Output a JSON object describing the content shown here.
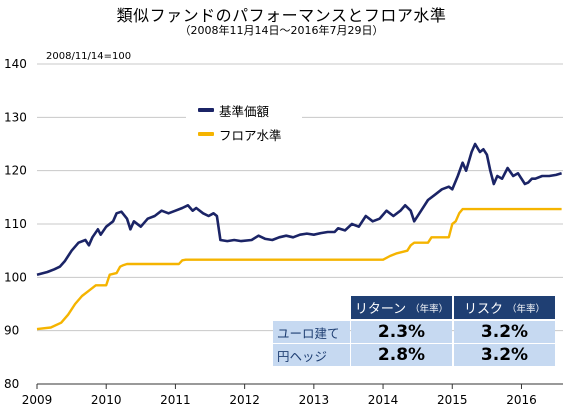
{
  "header": {
    "title": "類似ファンドのパフォーマンスとフロア水準",
    "subtitle": "（2008年11月14日〜2016年7月29日）",
    "base_note": "2008/11/14=100"
  },
  "legend": {
    "items": [
      {
        "label": "基準価額",
        "color": "#1b2466"
      },
      {
        "label": "フロア水準",
        "color": "#f5b400"
      }
    ]
  },
  "stats_table": {
    "headers": [
      {
        "label": "リターン",
        "sub": "（年率）"
      },
      {
        "label": "リスク",
        "sub": "（年率）"
      }
    ],
    "rows": [
      {
        "label": "ユーロ建て",
        "return": "2.3%",
        "risk": "3.2%"
      },
      {
        "label": "円ヘッジ",
        "return": "2.8%",
        "risk": "3.2%"
      }
    ]
  },
  "chart_data": {
    "type": "line",
    "title": "類似ファンドのパフォーマンスとフロア水準",
    "subtitle": "（2008年11月14日〜2016年7月29日）",
    "xlabel": "",
    "ylabel": "",
    "xlim": [
      2009.0,
      2016.6
    ],
    "ylim": [
      80,
      140
    ],
    "y_ticks": [
      80,
      90,
      100,
      110,
      120,
      130,
      140
    ],
    "x_ticks": [
      2009,
      2010,
      2011,
      2012,
      2013,
      2014,
      2015,
      2016
    ],
    "grid": "horizontal",
    "legend_position": "upper-left",
    "series": [
      {
        "name": "基準価額",
        "color": "#1b2466",
        "points": [
          [
            2009.0,
            100.5
          ],
          [
            2009.15,
            101.0
          ],
          [
            2009.25,
            101.5
          ],
          [
            2009.33,
            102.0
          ],
          [
            2009.4,
            103.0
          ],
          [
            2009.5,
            105.0
          ],
          [
            2009.6,
            106.5
          ],
          [
            2009.7,
            107.0
          ],
          [
            2009.75,
            106.0
          ],
          [
            2009.8,
            107.5
          ],
          [
            2009.88,
            109.0
          ],
          [
            2009.92,
            108.0
          ],
          [
            2010.0,
            109.5
          ],
          [
            2010.1,
            110.5
          ],
          [
            2010.15,
            112.0
          ],
          [
            2010.22,
            112.3
          ],
          [
            2010.3,
            111.0
          ],
          [
            2010.35,
            109.0
          ],
          [
            2010.4,
            110.5
          ],
          [
            2010.5,
            109.5
          ],
          [
            2010.6,
            111.0
          ],
          [
            2010.7,
            111.5
          ],
          [
            2010.8,
            112.5
          ],
          [
            2010.9,
            112.0
          ],
          [
            2011.0,
            112.5
          ],
          [
            2011.1,
            113.0
          ],
          [
            2011.18,
            113.5
          ],
          [
            2011.25,
            112.5
          ],
          [
            2011.3,
            113.0
          ],
          [
            2011.4,
            112.0
          ],
          [
            2011.48,
            111.5
          ],
          [
            2011.55,
            112.0
          ],
          [
            2011.6,
            111.5
          ],
          [
            2011.65,
            107.0
          ],
          [
            2011.75,
            106.8
          ],
          [
            2011.85,
            107.0
          ],
          [
            2011.95,
            106.8
          ],
          [
            2012.1,
            107.0
          ],
          [
            2012.2,
            107.8
          ],
          [
            2012.3,
            107.2
          ],
          [
            2012.4,
            107.0
          ],
          [
            2012.5,
            107.5
          ],
          [
            2012.6,
            107.8
          ],
          [
            2012.7,
            107.5
          ],
          [
            2012.8,
            108.0
          ],
          [
            2012.9,
            108.2
          ],
          [
            2013.0,
            108.0
          ],
          [
            2013.1,
            108.3
          ],
          [
            2013.2,
            108.5
          ],
          [
            2013.3,
            108.5
          ],
          [
            2013.35,
            109.2
          ],
          [
            2013.45,
            108.8
          ],
          [
            2013.55,
            110.0
          ],
          [
            2013.65,
            109.5
          ],
          [
            2013.75,
            111.5
          ],
          [
            2013.85,
            110.5
          ],
          [
            2013.95,
            111.0
          ],
          [
            2014.05,
            112.5
          ],
          [
            2014.15,
            111.5
          ],
          [
            2014.25,
            112.5
          ],
          [
            2014.32,
            113.5
          ],
          [
            2014.4,
            112.5
          ],
          [
            2014.45,
            110.5
          ],
          [
            2014.55,
            112.5
          ],
          [
            2014.65,
            114.5
          ],
          [
            2014.75,
            115.5
          ],
          [
            2014.85,
            116.5
          ],
          [
            2014.95,
            117.0
          ],
          [
            2015.0,
            116.5
          ],
          [
            2015.08,
            119.0
          ],
          [
            2015.15,
            121.5
          ],
          [
            2015.2,
            120.0
          ],
          [
            2015.28,
            123.5
          ],
          [
            2015.33,
            125.0
          ],
          [
            2015.4,
            123.5
          ],
          [
            2015.45,
            124.0
          ],
          [
            2015.5,
            123.0
          ],
          [
            2015.55,
            120.0
          ],
          [
            2015.6,
            117.5
          ],
          [
            2015.65,
            119.0
          ],
          [
            2015.72,
            118.5
          ],
          [
            2015.8,
            120.5
          ],
          [
            2015.88,
            119.0
          ],
          [
            2015.95,
            119.5
          ],
          [
            2016.05,
            117.5
          ],
          [
            2016.1,
            117.8
          ],
          [
            2016.15,
            118.5
          ],
          [
            2016.2,
            118.5
          ],
          [
            2016.3,
            119.0
          ],
          [
            2016.4,
            119.0
          ],
          [
            2016.5,
            119.2
          ],
          [
            2016.58,
            119.5
          ]
        ]
      },
      {
        "name": "フロア水準",
        "color": "#f5b400",
        "points": [
          [
            2009.0,
            90.3
          ],
          [
            2009.2,
            90.6
          ],
          [
            2009.35,
            91.5
          ],
          [
            2009.45,
            93.0
          ],
          [
            2009.55,
            95.0
          ],
          [
            2009.65,
            96.5
          ],
          [
            2009.75,
            97.5
          ],
          [
            2009.85,
            98.5
          ],
          [
            2010.0,
            98.5
          ],
          [
            2010.05,
            100.5
          ],
          [
            2010.15,
            100.8
          ],
          [
            2010.2,
            102.0
          ],
          [
            2010.25,
            102.3
          ],
          [
            2010.3,
            102.5
          ],
          [
            2011.0,
            102.5
          ],
          [
            2011.05,
            102.5
          ],
          [
            2011.1,
            103.2
          ],
          [
            2011.15,
            103.3
          ],
          [
            2014.0,
            103.3
          ],
          [
            2014.1,
            104.0
          ],
          [
            2014.2,
            104.5
          ],
          [
            2014.35,
            105.0
          ],
          [
            2014.4,
            106.0
          ],
          [
            2014.45,
            106.5
          ],
          [
            2014.65,
            106.5
          ],
          [
            2014.7,
            107.5
          ],
          [
            2014.95,
            107.5
          ],
          [
            2015.0,
            110.0
          ],
          [
            2015.05,
            110.5
          ],
          [
            2015.1,
            112.0
          ],
          [
            2015.15,
            112.8
          ],
          [
            2016.58,
            112.8
          ]
        ]
      }
    ]
  }
}
